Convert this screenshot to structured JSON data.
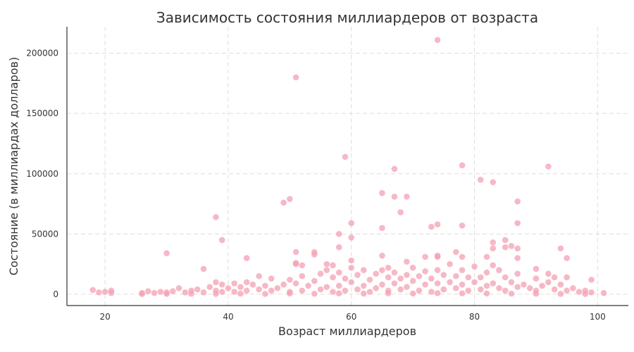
{
  "chart_data": {
    "type": "scatter",
    "title": "Зависимость состояния миллиардеров от возраста",
    "xlabel": "Возраст миллиардеров",
    "ylabel": "Состояние (в миллиардах долларов)",
    "xlim": [
      13.8,
      105
    ],
    "ylim": [
      -9400,
      222000
    ],
    "xticks": [
      20,
      40,
      60,
      80,
      100
    ],
    "yticks": [
      0,
      50000,
      100000,
      150000,
      200000
    ],
    "grid": true,
    "color": "#f4a0b2",
    "points": [
      [
        74,
        211000
      ],
      [
        51,
        180000
      ],
      [
        59,
        114000
      ],
      [
        67,
        104000
      ],
      [
        78,
        107000
      ],
      [
        92,
        106000
      ],
      [
        81,
        95000
      ],
      [
        83,
        93000
      ],
      [
        65,
        84000
      ],
      [
        67,
        81000
      ],
      [
        69,
        81000
      ],
      [
        50,
        79000
      ],
      [
        49,
        76000
      ],
      [
        87,
        77000
      ],
      [
        68,
        68000
      ],
      [
        38,
        64000
      ],
      [
        60,
        59000
      ],
      [
        74,
        58000
      ],
      [
        78,
        57000
      ],
      [
        87,
        59000
      ],
      [
        73,
        56000
      ],
      [
        65,
        55000
      ],
      [
        58,
        50000
      ],
      [
        39,
        45000
      ],
      [
        60,
        47000
      ],
      [
        85,
        45000
      ],
      [
        83,
        43000
      ],
      [
        58,
        39000
      ],
      [
        85,
        39000
      ],
      [
        86,
        40000
      ],
      [
        87,
        38000
      ],
      [
        94,
        38000
      ],
      [
        83,
        38000
      ],
      [
        30,
        34000
      ],
      [
        51,
        35000
      ],
      [
        54,
        35000
      ],
      [
        54,
        33000
      ],
      [
        77,
        35000
      ],
      [
        74,
        32000
      ],
      [
        74,
        31000
      ],
      [
        65,
        32000
      ],
      [
        72,
        31000
      ],
      [
        78,
        31000
      ],
      [
        95,
        30000
      ],
      [
        43,
        30000
      ],
      [
        87,
        30000
      ],
      [
        82,
        31000
      ],
      [
        56,
        25000
      ],
      [
        69,
        27000
      ],
      [
        51,
        26000
      ],
      [
        51,
        25000
      ],
      [
        52,
        24000
      ],
      [
        57,
        24000
      ],
      [
        60,
        28000
      ],
      [
        66,
        22000
      ],
      [
        36,
        21000
      ],
      [
        90,
        21000
      ],
      [
        92,
        17000
      ],
      [
        99,
        12000
      ],
      [
        101,
        1000
      ],
      [
        18,
        3500
      ],
      [
        19,
        1500
      ],
      [
        20,
        2000
      ],
      [
        21,
        3000
      ],
      [
        21,
        1000
      ],
      [
        26,
        1000
      ],
      [
        27,
        2500
      ],
      [
        28,
        1000
      ],
      [
        29,
        2000
      ],
      [
        30,
        1500
      ],
      [
        31,
        2500
      ],
      [
        32,
        5000
      ],
      [
        33,
        1500
      ],
      [
        34,
        3000
      ],
      [
        35,
        4000
      ],
      [
        36,
        1500
      ],
      [
        37,
        6000
      ],
      [
        38,
        10000
      ],
      [
        38,
        3000
      ],
      [
        39,
        8000
      ],
      [
        39,
        2000
      ],
      [
        40,
        5000
      ],
      [
        41,
        9000
      ],
      [
        41,
        2000
      ],
      [
        42,
        6000
      ],
      [
        43,
        10000
      ],
      [
        43,
        3000
      ],
      [
        44,
        8000
      ],
      [
        45,
        15000
      ],
      [
        45,
        4000
      ],
      [
        46,
        7000
      ],
      [
        47,
        13000
      ],
      [
        47,
        3000
      ],
      [
        48,
        5000
      ],
      [
        49,
        8000
      ],
      [
        50,
        12000
      ],
      [
        50,
        2000
      ],
      [
        51,
        9000
      ],
      [
        52,
        15000
      ],
      [
        52,
        3000
      ],
      [
        53,
        7000
      ],
      [
        54,
        11000
      ],
      [
        55,
        17000
      ],
      [
        55,
        4000
      ],
      [
        56,
        20000
      ],
      [
        56,
        6000
      ],
      [
        57,
        14000
      ],
      [
        57,
        2000
      ],
      [
        58,
        18000
      ],
      [
        58,
        7000
      ],
      [
        59,
        13000
      ],
      [
        59,
        3000
      ],
      [
        60,
        22000
      ],
      [
        60,
        10000
      ],
      [
        61,
        16000
      ],
      [
        61,
        4000
      ],
      [
        62,
        20000
      ],
      [
        62,
        7000
      ],
      [
        63,
        12000
      ],
      [
        63,
        2000
      ],
      [
        64,
        17000
      ],
      [
        64,
        5000
      ],
      [
        65,
        20000
      ],
      [
        65,
        8000
      ],
      [
        66,
        14000
      ],
      [
        66,
        3000
      ],
      [
        67,
        18000
      ],
      [
        67,
        9000
      ],
      [
        68,
        13000
      ],
      [
        68,
        4000
      ],
      [
        69,
        16000
      ],
      [
        69,
        6000
      ],
      [
        70,
        22000
      ],
      [
        70,
        11000
      ],
      [
        71,
        15000
      ],
      [
        71,
        3000
      ],
      [
        72,
        19000
      ],
      [
        72,
        8000
      ],
      [
        73,
        13000
      ],
      [
        73,
        2000
      ],
      [
        74,
        20000
      ],
      [
        74,
        9000
      ],
      [
        75,
        16000
      ],
      [
        75,
        4000
      ],
      [
        76,
        25000
      ],
      [
        76,
        10000
      ],
      [
        77,
        15000
      ],
      [
        77,
        5000
      ],
      [
        78,
        20000
      ],
      [
        78,
        8000
      ],
      [
        79,
        14000
      ],
      [
        79,
        3000
      ],
      [
        80,
        23000
      ],
      [
        80,
        10000
      ],
      [
        81,
        14000
      ],
      [
        81,
        4000
      ],
      [
        82,
        18000
      ],
      [
        82,
        7000
      ],
      [
        83,
        24000
      ],
      [
        83,
        9000
      ],
      [
        84,
        20000
      ],
      [
        84,
        5000
      ],
      [
        85,
        14000
      ],
      [
        85,
        3000
      ],
      [
        86,
        10000
      ],
      [
        87,
        17000
      ],
      [
        87,
        6000
      ],
      [
        88,
        8000
      ],
      [
        89,
        5000
      ],
      [
        90,
        13000
      ],
      [
        90,
        3000
      ],
      [
        91,
        7000
      ],
      [
        92,
        10000
      ],
      [
        93,
        14000
      ],
      [
        93,
        4000
      ],
      [
        94,
        8000
      ],
      [
        95,
        14000
      ],
      [
        95,
        3000
      ],
      [
        96,
        5000
      ],
      [
        97,
        2000
      ],
      [
        98,
        3000
      ],
      [
        99,
        1500
      ],
      [
        26,
        200
      ],
      [
        30,
        300
      ],
      [
        34,
        400
      ],
      [
        38,
        300
      ],
      [
        42,
        500
      ],
      [
        46,
        300
      ],
      [
        50,
        600
      ],
      [
        54,
        400
      ],
      [
        58,
        700
      ],
      [
        62,
        500
      ],
      [
        66,
        800
      ],
      [
        70,
        600
      ],
      [
        74,
        900
      ],
      [
        78,
        700
      ],
      [
        82,
        600
      ],
      [
        86,
        500
      ],
      [
        90,
        400
      ],
      [
        94,
        300
      ],
      [
        98,
        200
      ]
    ]
  }
}
